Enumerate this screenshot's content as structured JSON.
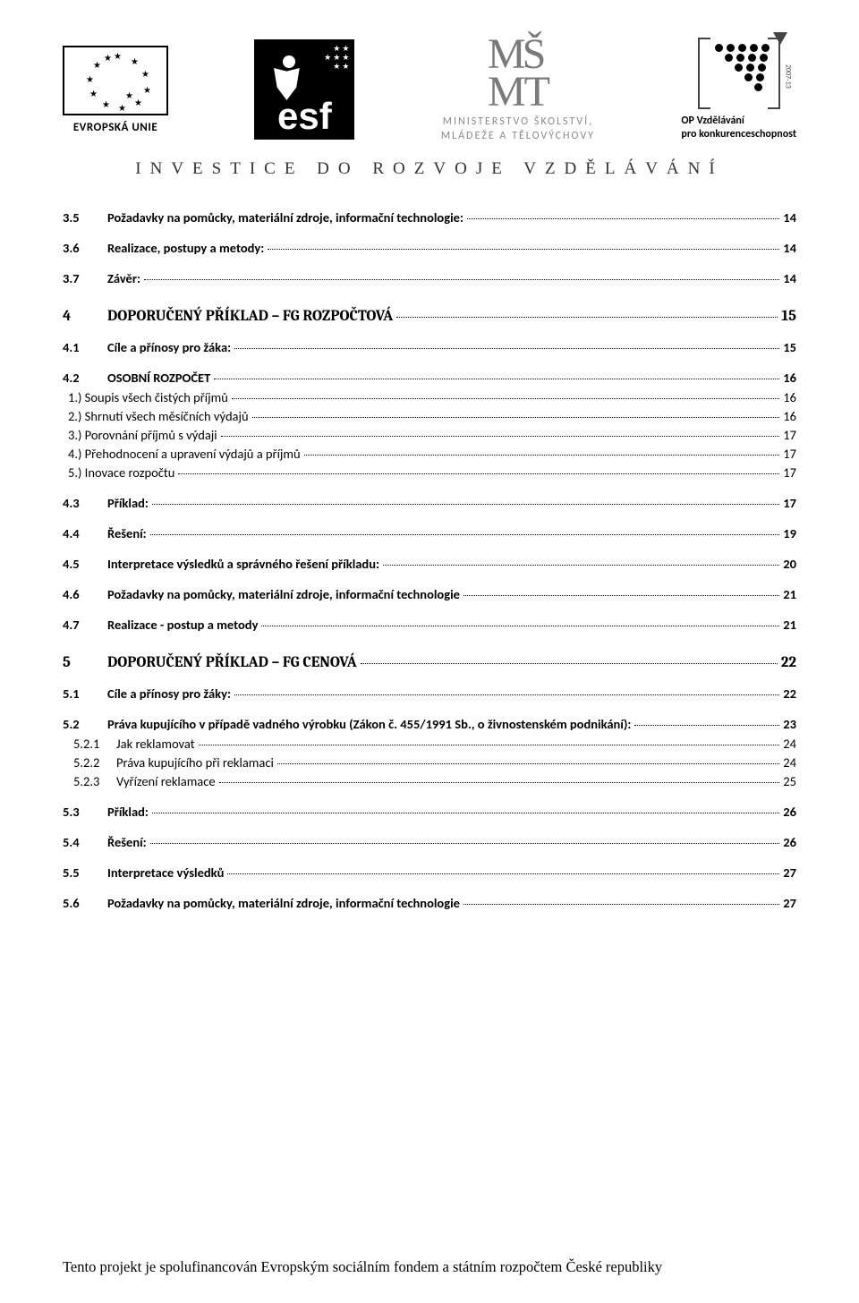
{
  "header": {
    "eu_label": "EVROPSKÁ UNIE",
    "esf_text": "esf",
    "msmt_line1": "MINISTERSTVO ŠKOLSTVÍ,",
    "msmt_line2": "MLÁDEŽE A TĚLOVÝCHOVY",
    "op_line1": "OP Vzdělávání",
    "op_line2": "pro konkurenceschopnost",
    "op_side": "2007-13"
  },
  "tagline": "INVESTICE DO ROZVOJE VZDĚLÁVÁNÍ",
  "toc": [
    {
      "level": "lvl2",
      "num": "3.5",
      "label": "Požadavky na pomůcky, materiální zdroje, informační technologie:",
      "page": "14"
    },
    {
      "level": "lvl2",
      "num": "3.6",
      "label": "Realizace, postupy a metody:",
      "page": "14"
    },
    {
      "level": "lvl2",
      "num": "3.7",
      "label": "Závěr:",
      "page": "14"
    },
    {
      "level": "lvl1",
      "num": "4",
      "label": "DOPORUČENÝ PŘÍKLAD – FG ROZPOČTOVÁ",
      "page": "15"
    },
    {
      "level": "lvl2",
      "num": "4.1",
      "label": "Cíle a přínosy pro žáka:",
      "page": "15"
    },
    {
      "level": "lvl2",
      "num": "4.2",
      "label": "OSOBNÍ ROZPOČET",
      "page": "16"
    },
    {
      "level": "lvl3",
      "num": "",
      "label": "1.) Soupis všech čistých příjmů",
      "page": "16"
    },
    {
      "level": "lvl3",
      "num": "",
      "label": "2.) Shrnutí všech měsíčních výdajů",
      "page": "16"
    },
    {
      "level": "lvl3",
      "num": "",
      "label": "3.) Porovnání příjmů  s výdaji",
      "page": "17"
    },
    {
      "level": "lvl3",
      "num": "",
      "label": "4.) Přehodnocení a upravení výdajů a příjmů",
      "page": "17"
    },
    {
      "level": "lvl3",
      "num": "",
      "label": "5.) Inovace rozpočtu",
      "page": "17"
    },
    {
      "level": "lvl2",
      "num": "4.3",
      "label": "Příklad:",
      "page": "17"
    },
    {
      "level": "lvl2",
      "num": "4.4",
      "label": "Řešení:",
      "page": "19"
    },
    {
      "level": "lvl2",
      "num": "4.5",
      "label": "Interpretace výsledků a správného řešení příkladu:",
      "page": "20"
    },
    {
      "level": "lvl2",
      "num": "4.6",
      "label": "Požadavky na pomůcky, materiální zdroje, informační technologie",
      "page": "21"
    },
    {
      "level": "lvl2",
      "num": "4.7",
      "label": "Realizace - postup a metody",
      "page": "21"
    },
    {
      "level": "lvl1",
      "num": "5",
      "label": "DOPORUČENÝ PŘÍKLAD – FG CENOVÁ",
      "page": "22"
    },
    {
      "level": "lvl2",
      "num": "5.1",
      "label": "Cíle a přínosy pro žáky:",
      "page": "22"
    },
    {
      "level": "lvl2",
      "num": "5.2",
      "label": "Práva kupujícího v případě vadného výrobku (Zákon č. 455/1991 Sb., o živnostenském podnikání):",
      "page": "23"
    },
    {
      "level": "lvl3b",
      "num": "5.2.1",
      "label": "Jak reklamovat",
      "page": "24"
    },
    {
      "level": "lvl3b",
      "num": "5.2.2",
      "label": "Práva kupujícího při reklamaci",
      "page": "24"
    },
    {
      "level": "lvl3b",
      "num": "5.2.3",
      "label": "Vyřízení reklamace",
      "page": "25"
    },
    {
      "level": "lvl2",
      "num": "5.3",
      "label": "Příklad:",
      "page": "26"
    },
    {
      "level": "lvl2",
      "num": "5.4",
      "label": "Řešení:",
      "page": "26"
    },
    {
      "level": "lvl2",
      "num": "5.5",
      "label": "Interpretace výsledků",
      "page": "27"
    },
    {
      "level": "lvl2",
      "num": "5.6",
      "label": "Požadavky na pomůcky, materiální zdroje, informační technologie",
      "page": "27"
    }
  ],
  "footer": "Tento projekt je spolufinancován Evropským sociálním fondem a státním rozpočtem České republiky"
}
